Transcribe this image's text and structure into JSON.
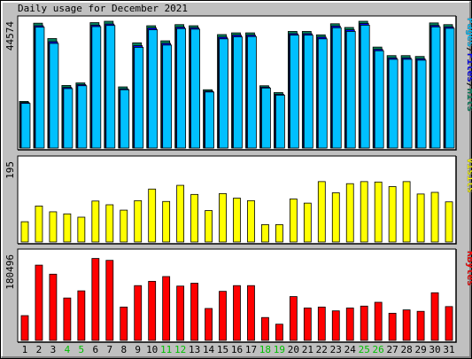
{
  "chart_data": {
    "type": "bar",
    "title": "Daily usage for December 2021",
    "categories": [
      "1",
      "2",
      "3",
      "4",
      "5",
      "6",
      "7",
      "8",
      "9",
      "10",
      "11",
      "12",
      "13",
      "14",
      "15",
      "16",
      "17",
      "18",
      "19",
      "20",
      "21",
      "22",
      "23",
      "24",
      "25",
      "26",
      "27",
      "28",
      "29",
      "30",
      "31"
    ],
    "weekend_days": [
      "4",
      "5",
      "11",
      "12",
      "18",
      "19",
      "25",
      "26"
    ],
    "colors": {
      "frame_bg": "#c0c0c0",
      "panel_bg": "#ffffff",
      "hits": "#00805c",
      "files": "#0000ff",
      "pages": "#00c0ff",
      "visits": "#ffff00",
      "kbytes": "#ff0000",
      "weekday_label": "#000000",
      "weekend_label": "#00c000"
    },
    "panels": [
      {
        "name": "hits-files-pages",
        "ymax_label": "44574",
        "ymax": 44574,
        "legend": [
          {
            "text": "Pages",
            "color": "#00c0ff"
          },
          {
            "text": "/",
            "color": "#000000"
          },
          {
            "text": "Files",
            "color": "#0000ff"
          },
          {
            "text": "/",
            "color": "#000000"
          },
          {
            "text": "Hits",
            "color": "#00805c"
          }
        ],
        "series": [
          {
            "name": "Hits",
            "values": [
              16400,
              43900,
              38500,
              22000,
              22900,
              44100,
              44574,
              21500,
              37000,
              43000,
              37700,
              43400,
              43000,
              20500,
              39900,
              40500,
              40500,
              21900,
              19500,
              41000,
              41000,
              39800,
              43700,
              42400,
              44574,
              35500,
              32500,
              32500,
              32200,
              44000,
              43400
            ]
          },
          {
            "name": "Files",
            "values": [
              16000,
              43000,
              37400,
              21300,
              22300,
              43200,
              43600,
              20800,
              36000,
              42200,
              36800,
              42500,
              42300,
              20000,
              39000,
              39700,
              39700,
              21400,
              18900,
              40200,
              40200,
              39000,
              42900,
              41600,
              43800,
              34700,
              31700,
              31700,
              31400,
              43100,
              42600
            ]
          },
          {
            "name": "Pages",
            "values": [
              15700,
              42500,
              36800,
              20900,
              21900,
              42700,
              43100,
              20500,
              35400,
              41600,
              36200,
              42000,
              41800,
              19700,
              38400,
              39100,
              39200,
              21100,
              18600,
              39700,
              39700,
              38400,
              42300,
              41000,
              43200,
              34200,
              31200,
              31200,
              30900,
              42600,
              42100
            ]
          }
        ]
      },
      {
        "name": "visits",
        "ymax_label": "195",
        "ymax": 195,
        "legend": [
          {
            "text": "Visits",
            "color": "#ffff00"
          }
        ],
        "series": [
          {
            "name": "Visits",
            "values": [
              49,
              87,
              73,
              68,
              60,
              99,
              90,
              77,
              100,
              128,
              98,
              137,
              115,
              76,
              117,
              106,
              100,
              42,
              42,
              104,
              94,
              146,
              119,
              141,
              146,
              145,
              134,
              146,
              116,
              120,
              97
            ]
          }
        ]
      },
      {
        "name": "kbytes",
        "ymax_label": "180496",
        "ymax": 180496,
        "legend": [
          {
            "text": "KBytes",
            "color": "#ff0000"
          }
        ],
        "series": [
          {
            "name": "KBytes",
            "values": [
              52000,
              158000,
              139000,
              89000,
              104000,
              172000,
              168000,
              70000,
              115000,
              124000,
              134000,
              114000,
              120000,
              67000,
              103000,
              115000,
              115000,
              48000,
              34000,
              92000,
              68000,
              70000,
              62000,
              68000,
              72000,
              80000,
              57000,
              64000,
              61000,
              100000,
              71000
            ]
          }
        ]
      }
    ]
  }
}
